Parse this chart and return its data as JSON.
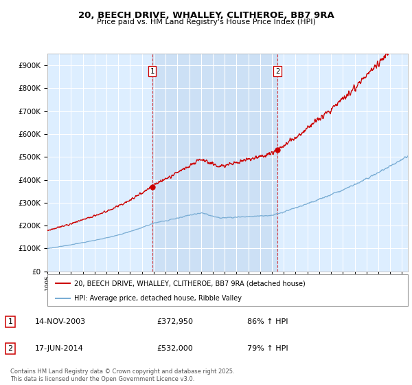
{
  "title": "20, BEECH DRIVE, WHALLEY, CLITHEROE, BB7 9RA",
  "subtitle": "Price paid vs. HM Land Registry's House Price Index (HPI)",
  "red_label": "20, BEECH DRIVE, WHALLEY, CLITHEROE, BB7 9RA (detached house)",
  "blue_label": "HPI: Average price, detached house, Ribble Valley",
  "sale1_date": "14-NOV-2003",
  "sale1_price": 372950,
  "sale1_pct": "86% ↑ HPI",
  "sale2_date": "17-JUN-2014",
  "sale2_price": 532000,
  "sale2_pct": "79% ↑ HPI",
  "footer": "Contains HM Land Registry data © Crown copyright and database right 2025.\nThis data is licensed under the Open Government Licence v3.0.",
  "ylim": [
    0,
    950000
  ],
  "xlim_start": 1995.0,
  "xlim_end": 2025.5,
  "sale1_year": 2003.87,
  "sale2_year": 2014.46,
  "bg_color": "#ddeeff",
  "shade_color": "#cce0f5",
  "red_color": "#cc0000",
  "blue_color": "#7aadd4",
  "grid_color": "#ffffff",
  "label_number_color": "#000000",
  "label_border_color": "#cc0000"
}
